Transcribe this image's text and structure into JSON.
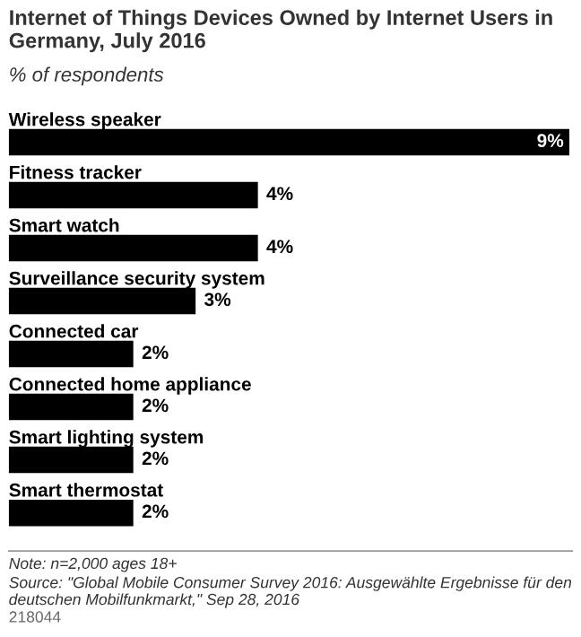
{
  "chart_data": {
    "type": "bar",
    "orientation": "horizontal",
    "title": "Internet of Things Devices Owned by Internet Users in Germany, July 2016",
    "subtitle": "% of respondents",
    "categories": [
      "Wireless speaker",
      "Fitness tracker",
      "Smart watch",
      "Surveillance security system",
      "Connected car",
      "Connected home appliance",
      "Smart lighting system",
      "Smart thermostat"
    ],
    "values": [
      9,
      4,
      4,
      3,
      2,
      2,
      2,
      2
    ],
    "value_labels": [
      "9%",
      "4%",
      "4%",
      "3%",
      "2%",
      "2%",
      "2%",
      "2%"
    ],
    "color": "#000000",
    "annotations": [
      "Note: n=2,000 ages 18+",
      "Source: \"Global Mobile Consumer Survey 2016: Ausgewählte Ergebnisse für den deutschen Mobilfunkmarkt,\" Sep 28, 2016",
      "218044"
    ]
  }
}
